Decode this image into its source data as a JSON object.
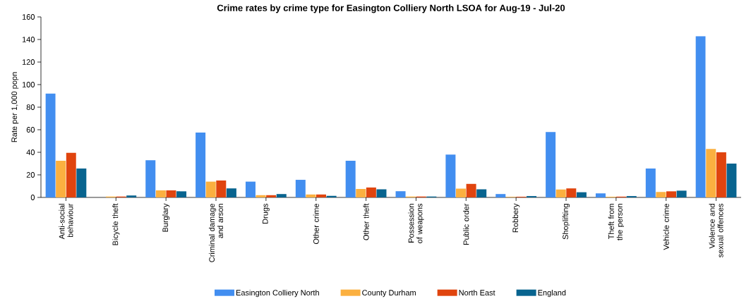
{
  "chart_data": {
    "type": "bar",
    "title": "Crime rates by crime type for Easington Colliery North LSOA for Aug-19 - Jul-20",
    "ylabel": "Rate per 1,000 popn",
    "categories": [
      "Anti-social behaviour",
      "Bicycle theft",
      "Burglary",
      "Criminal damage and arson",
      "Drugs",
      "Other crime",
      "Other theft",
      "Possession of weapons",
      "Public order",
      "Robbery",
      "Shoplifting",
      "Theft from the person",
      "Vehicle crime",
      "Violence and sexual offences"
    ],
    "series": [
      {
        "name": "Easington Colliery North",
        "color": "#428ef0",
        "values": [
          92,
          0,
          33,
          57.5,
          14,
          15.6,
          32.5,
          5.5,
          38,
          3,
          58,
          3.6,
          25.6,
          143
        ]
      },
      {
        "name": "County Durham",
        "color": "#fbb040",
        "values": [
          32.5,
          0.8,
          6.2,
          14,
          2,
          2.6,
          7.5,
          0.8,
          7.8,
          0.5,
          7,
          0.6,
          4.8,
          43
        ]
      },
      {
        "name": "North East",
        "color": "#e0440e",
        "values": [
          39.5,
          0.8,
          6.2,
          15,
          2,
          2.6,
          8.8,
          0.8,
          12,
          0.6,
          8,
          0.7,
          5.4,
          40
        ]
      },
      {
        "name": "England",
        "color": "#08648f",
        "values": [
          25.6,
          1.7,
          5.4,
          8,
          3,
          1.4,
          7.2,
          0.8,
          7.2,
          1.2,
          4.6,
          1.2,
          6,
          30
        ]
      }
    ],
    "ylim": [
      0,
      160
    ],
    "yticks": [
      0,
      20,
      40,
      60,
      80,
      100,
      120,
      140,
      160
    ],
    "grid": false,
    "legend": "bottom"
  }
}
